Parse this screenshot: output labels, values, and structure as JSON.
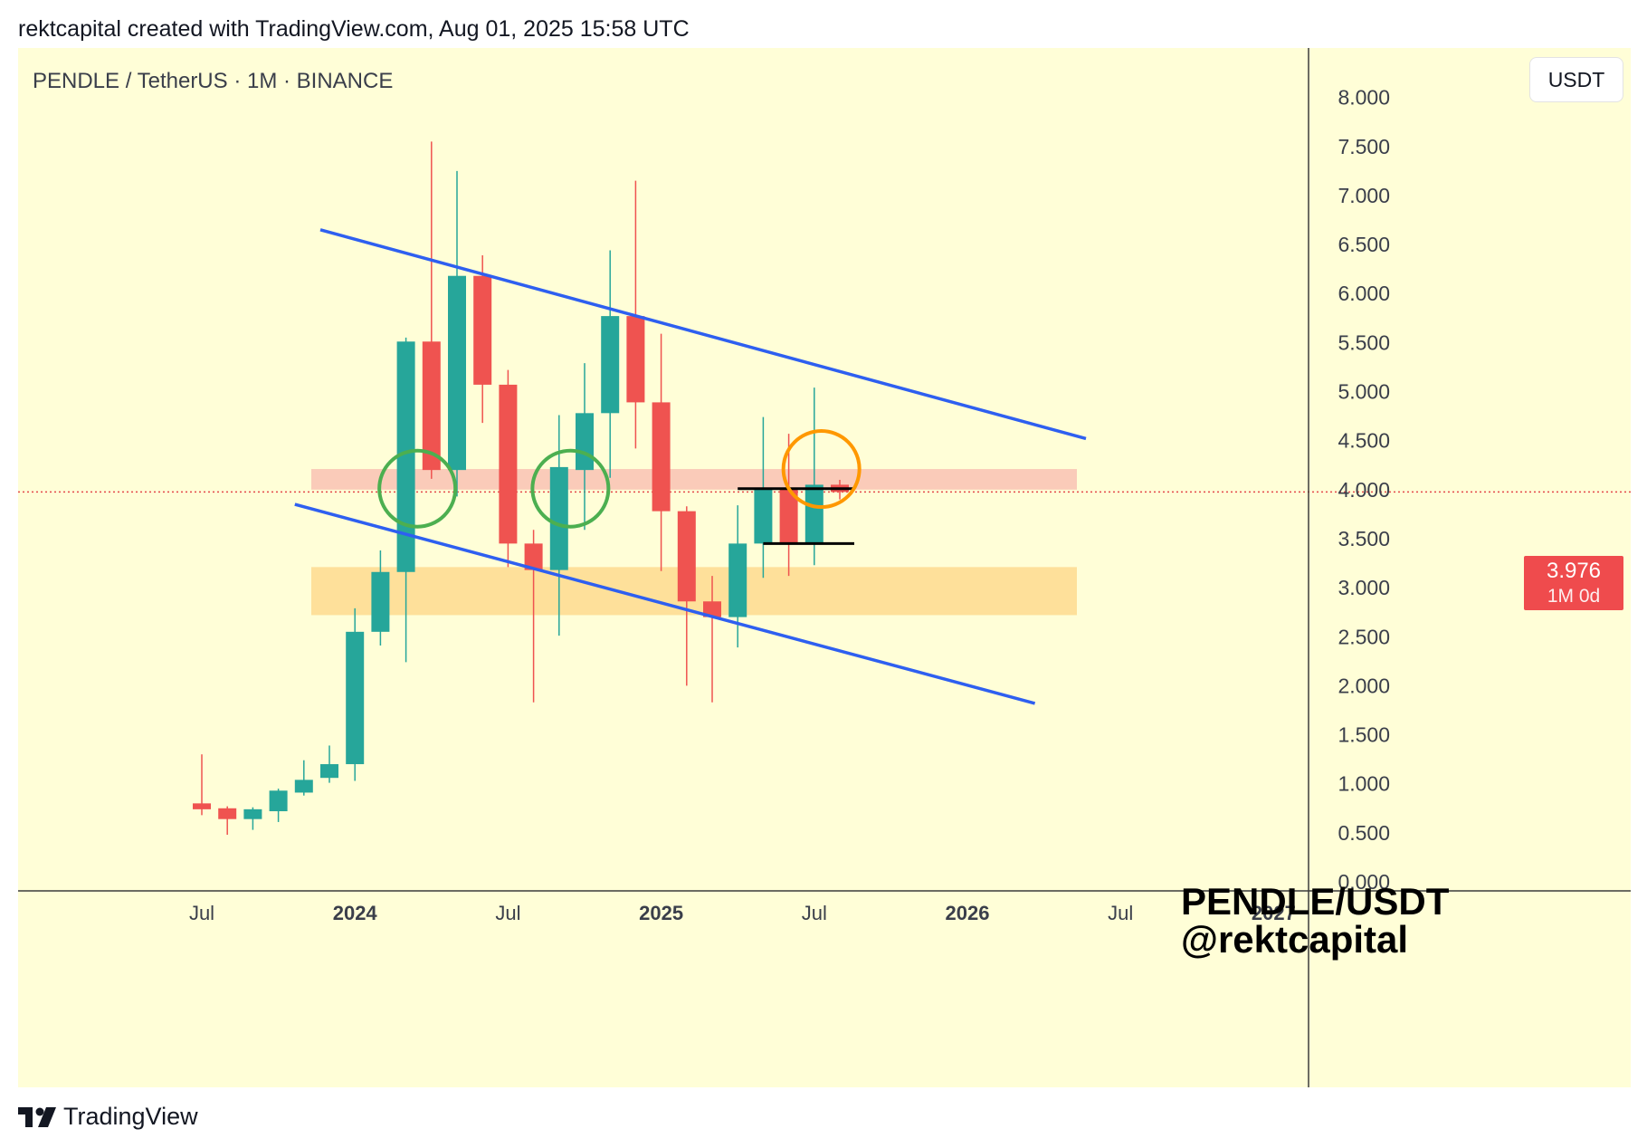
{
  "caption": "rektcapital created with TradingView.com, Aug 01, 2025 15:58 UTC",
  "symbol_label": "PENDLE / TetherUS · 1M · BINANCE",
  "currency_button": "USDT",
  "price_tag": {
    "value": "3.976",
    "timeframe": "1M 0d"
  },
  "watermark": {
    "line1": "PENDLE/USDT",
    "line2": "@rektcapital"
  },
  "footer_logo": "TradingView",
  "colors": {
    "up": "#26a69a",
    "down": "#ef5350",
    "background": "#fffed7",
    "trendline": "#2e5ff0",
    "resistance_zone": "#f9c2b4",
    "support_zone": "#fedb8f",
    "green_circle": "#4caf50",
    "orange_circle": "#ff9800"
  },
  "chart_data": {
    "type": "candlestick",
    "title": "PENDLE / TetherUS · 1M · BINANCE",
    "ylim": [
      0,
      8
    ],
    "y_ticks": [
      "0.000",
      "0.500",
      "1.000",
      "1.500",
      "2.000",
      "2.500",
      "3.000",
      "3.500",
      "4.000",
      "4.500",
      "5.000",
      "5.500",
      "6.000",
      "6.500",
      "7.000",
      "7.500",
      "8.000"
    ],
    "x_ticks": [
      {
        "label": "Jul",
        "date": "2023-07",
        "bold": false
      },
      {
        "label": "2024",
        "date": "2024-01",
        "bold": true
      },
      {
        "label": "Jul",
        "date": "2024-07",
        "bold": false
      },
      {
        "label": "2025",
        "date": "2025-01",
        "bold": true
      },
      {
        "label": "Jul",
        "date": "2025-07",
        "bold": false
      },
      {
        "label": "2026",
        "date": "2026-01",
        "bold": true
      },
      {
        "label": "Jul",
        "date": "2026-07",
        "bold": false
      },
      {
        "label": "2027",
        "date": "2027-01",
        "bold": true
      }
    ],
    "candles": [
      {
        "date": "2023-07",
        "open": 0.8,
        "high": 1.3,
        "low": 0.68,
        "close": 0.74
      },
      {
        "date": "2023-08",
        "open": 0.75,
        "high": 0.77,
        "low": 0.48,
        "close": 0.64
      },
      {
        "date": "2023-09",
        "open": 0.64,
        "high": 0.76,
        "low": 0.53,
        "close": 0.74
      },
      {
        "date": "2023-10",
        "open": 0.72,
        "high": 0.95,
        "low": 0.61,
        "close": 0.93
      },
      {
        "date": "2023-11",
        "open": 0.91,
        "high": 1.24,
        "low": 0.88,
        "close": 1.04
      },
      {
        "date": "2023-12",
        "open": 1.06,
        "high": 1.39,
        "low": 1.01,
        "close": 1.2
      },
      {
        "date": "2024-01",
        "open": 1.2,
        "high": 2.79,
        "low": 1.03,
        "close": 2.55
      },
      {
        "date": "2024-02",
        "open": 2.55,
        "high": 3.38,
        "low": 2.41,
        "close": 3.16
      },
      {
        "date": "2024-03",
        "open": 3.16,
        "high": 5.55,
        "low": 2.24,
        "close": 5.51
      },
      {
        "date": "2024-04",
        "open": 5.51,
        "high": 7.55,
        "low": 4.11,
        "close": 4.2
      },
      {
        "date": "2024-05",
        "open": 4.2,
        "high": 7.25,
        "low": 3.93,
        "close": 6.18
      },
      {
        "date": "2024-06",
        "open": 6.18,
        "high": 6.39,
        "low": 4.68,
        "close": 5.07
      },
      {
        "date": "2024-07",
        "open": 5.07,
        "high": 5.22,
        "low": 3.21,
        "close": 3.45
      },
      {
        "date": "2024-08",
        "open": 3.45,
        "high": 3.59,
        "low": 1.83,
        "close": 3.18
      },
      {
        "date": "2024-09",
        "open": 3.18,
        "high": 4.76,
        "low": 2.51,
        "close": 4.23
      },
      {
        "date": "2024-10",
        "open": 4.2,
        "high": 5.29,
        "low": 3.59,
        "close": 4.78
      },
      {
        "date": "2024-11",
        "open": 4.78,
        "high": 6.44,
        "low": 4.12,
        "close": 5.77
      },
      {
        "date": "2024-12",
        "open": 5.77,
        "high": 7.15,
        "low": 4.42,
        "close": 4.89
      },
      {
        "date": "2025-01",
        "open": 4.89,
        "high": 5.59,
        "low": 3.17,
        "close": 3.78
      },
      {
        "date": "2025-02",
        "open": 3.78,
        "high": 3.83,
        "low": 2.0,
        "close": 2.86
      },
      {
        "date": "2025-03",
        "open": 2.86,
        "high": 3.12,
        "low": 1.83,
        "close": 2.7
      },
      {
        "date": "2025-04",
        "open": 2.7,
        "high": 3.84,
        "low": 2.39,
        "close": 3.45
      },
      {
        "date": "2025-05",
        "open": 3.45,
        "high": 4.74,
        "low": 3.1,
        "close": 4.01
      },
      {
        "date": "2025-06",
        "open": 4.01,
        "high": 4.57,
        "low": 3.12,
        "close": 3.45
      },
      {
        "date": "2025-07",
        "open": 3.45,
        "high": 5.04,
        "low": 3.23,
        "close": 4.05
      },
      {
        "date": "2025-08",
        "open": 4.05,
        "high": 4.1,
        "low": 3.9,
        "close": 3.976
      }
    ],
    "current_price": 3.976,
    "trendlines": [
      {
        "name": "upper",
        "from": {
          "date": "2023-12",
          "y": 6.65
        },
        "to": {
          "date": "2026-06",
          "y": 4.52
        }
      },
      {
        "name": "lower",
        "from": {
          "date": "2023-11",
          "y": 3.85
        },
        "to": {
          "date": "2026-04",
          "y": 1.82
        }
      }
    ],
    "zones": [
      {
        "name": "resistance",
        "date_from": "2023-12",
        "date_to": "2026-06",
        "y_from": 4.0,
        "y_to": 4.21
      },
      {
        "name": "support",
        "date_from": "2023-12",
        "date_to": "2026-06",
        "y_from": 2.72,
        "y_to": 3.21
      }
    ],
    "levels": [
      {
        "name": "range-high",
        "date_from": "2025-04",
        "date_to": "2025-08",
        "y": 4.01
      },
      {
        "name": "range-low",
        "date_from": "2025-05",
        "date_to": "2025-08",
        "y": 3.45
      }
    ],
    "circles": [
      {
        "name": "retest-1",
        "date": "2024-03-25",
        "y": 4.01,
        "color": "green"
      },
      {
        "name": "retest-2",
        "date": "2024-09-25",
        "y": 4.01,
        "color": "green"
      },
      {
        "name": "retest-3",
        "date": "2025-07-20",
        "y": 4.21,
        "color": "orange"
      }
    ]
  }
}
